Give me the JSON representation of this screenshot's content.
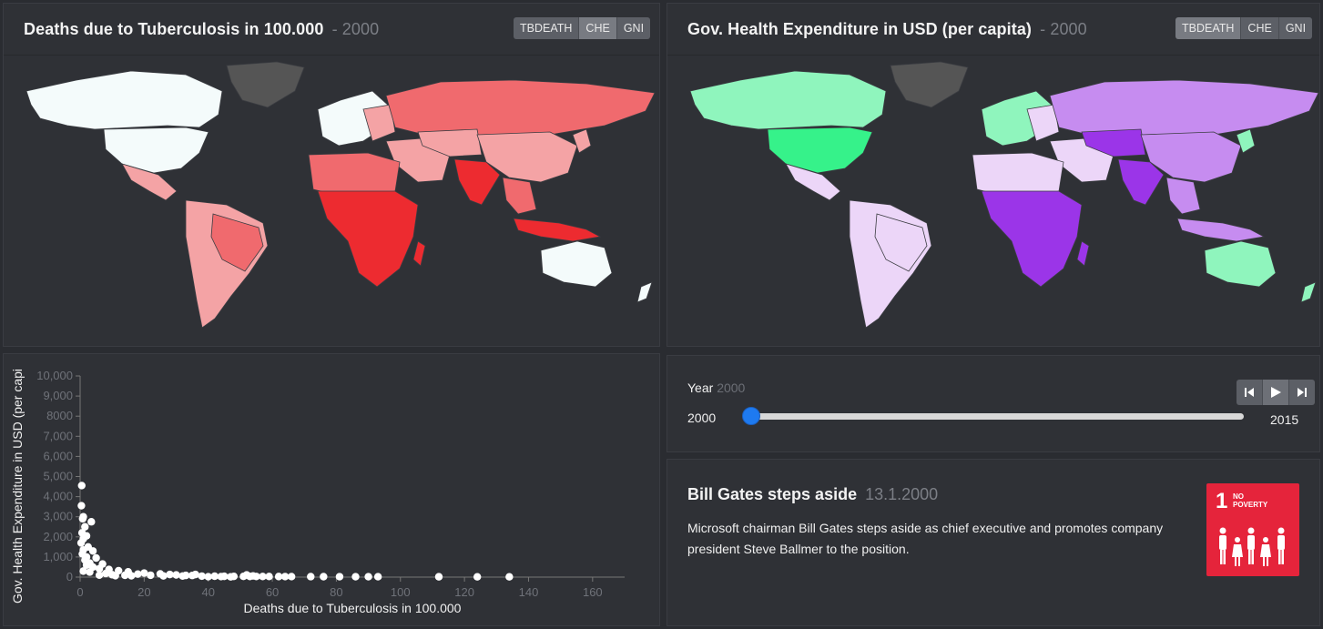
{
  "top_left": {
    "title": "Deaths due to Tuberculosis in 100.000",
    "year": "- 2000",
    "buttons": [
      "TBDEATH",
      "CHE",
      "GNI"
    ],
    "active_button": "CHE"
  },
  "top_right": {
    "title": "Gov. Health Expenditure in USD (per capita)",
    "year": "- 2000",
    "buttons": [
      "TBDEATH",
      "CHE",
      "GNI"
    ],
    "active_button": "TBDEATH"
  },
  "timeline": {
    "label": "Year",
    "current": "2000",
    "min": "2000",
    "max": "2015",
    "value_fraction": 0.0
  },
  "event": {
    "title": "Bill Gates steps aside",
    "date": "13.1.2000",
    "text": "Microsoft chairman Bill Gates steps aside as chief executive and promotes company president Steve Ballmer to the position.",
    "badge_number": "1",
    "badge_line1": "NO",
    "badge_line2": "POVERTY",
    "badge_color": "#e5243b"
  },
  "colors": {
    "tb_scale": [
      "#f4fbfb",
      "#f4a3a5",
      "#f06a6e",
      "#ed2b30"
    ],
    "che_scale": [
      "#36f28a",
      "#8ff5bd",
      "#ecd6f8",
      "#c68cf0",
      "#9b35e8"
    ],
    "no_data": "#555555"
  },
  "chart_data": {
    "type": "scatter",
    "xlabel": "Deaths due to Tuberculosis in 100.000",
    "ylabel": "Gov. Health Expenditure in USD (per capi",
    "x_ticks": [
      "0",
      "20",
      "40",
      "60",
      "80",
      "100",
      "120",
      "140",
      "160"
    ],
    "y_ticks": [
      "0",
      "1,000",
      "2,000",
      "3,000",
      "4,000",
      "5,000",
      "6,000",
      "7,000",
      "8000",
      "9,000",
      "10,000"
    ],
    "xlim": [
      0,
      170
    ],
    "ylim": [
      0,
      10000
    ],
    "points": [
      [
        0.5,
        4550
      ],
      [
        0.4,
        3550
      ],
      [
        1,
        3000
      ],
      [
        0.8,
        2900
      ],
      [
        3.5,
        2750
      ],
      [
        1.5,
        2500
      ],
      [
        0.6,
        2200
      ],
      [
        2,
        2050
      ],
      [
        1,
        1900
      ],
      [
        0.3,
        1700
      ],
      [
        2.5,
        1500
      ],
      [
        1,
        1350
      ],
      [
        4,
        1300
      ],
      [
        0.7,
        1150
      ],
      [
        2,
        1000
      ],
      [
        5,
        950
      ],
      [
        1.5,
        850
      ],
      [
        3,
        700
      ],
      [
        7,
        650
      ],
      [
        2,
        600
      ],
      [
        4,
        500
      ],
      [
        6,
        420
      ],
      [
        9,
        380
      ],
      [
        12,
        320
      ],
      [
        1,
        300
      ],
      [
        15,
        260
      ],
      [
        3,
        250
      ],
      [
        20,
        200
      ],
      [
        8,
        180
      ],
      [
        25,
        160
      ],
      [
        18,
        150
      ],
      [
        28,
        130
      ],
      [
        10,
        120
      ],
      [
        30,
        110
      ],
      [
        6,
        100
      ],
      [
        22,
        95
      ],
      [
        14,
        90
      ],
      [
        33,
        85
      ],
      [
        35,
        80
      ],
      [
        11,
        70
      ],
      [
        16,
        65
      ],
      [
        26,
        60
      ],
      [
        32,
        55
      ],
      [
        38,
        50
      ],
      [
        42,
        45
      ],
      [
        45,
        40
      ],
      [
        48,
        38
      ],
      [
        51,
        36
      ],
      [
        53,
        34
      ],
      [
        55,
        33
      ],
      [
        57,
        31
      ],
      [
        59,
        30
      ],
      [
        62,
        28
      ],
      [
        64,
        27
      ],
      [
        66,
        25
      ],
      [
        72,
        24
      ],
      [
        76,
        23
      ],
      [
        81,
        22
      ],
      [
        86,
        21
      ],
      [
        90,
        20
      ],
      [
        93,
        19
      ],
      [
        112,
        17
      ],
      [
        124,
        15
      ],
      [
        134,
        14
      ],
      [
        36,
        130
      ],
      [
        40,
        20
      ],
      [
        44,
        25
      ],
      [
        47,
        15
      ],
      [
        52,
        110
      ],
      [
        54,
        60
      ]
    ]
  }
}
